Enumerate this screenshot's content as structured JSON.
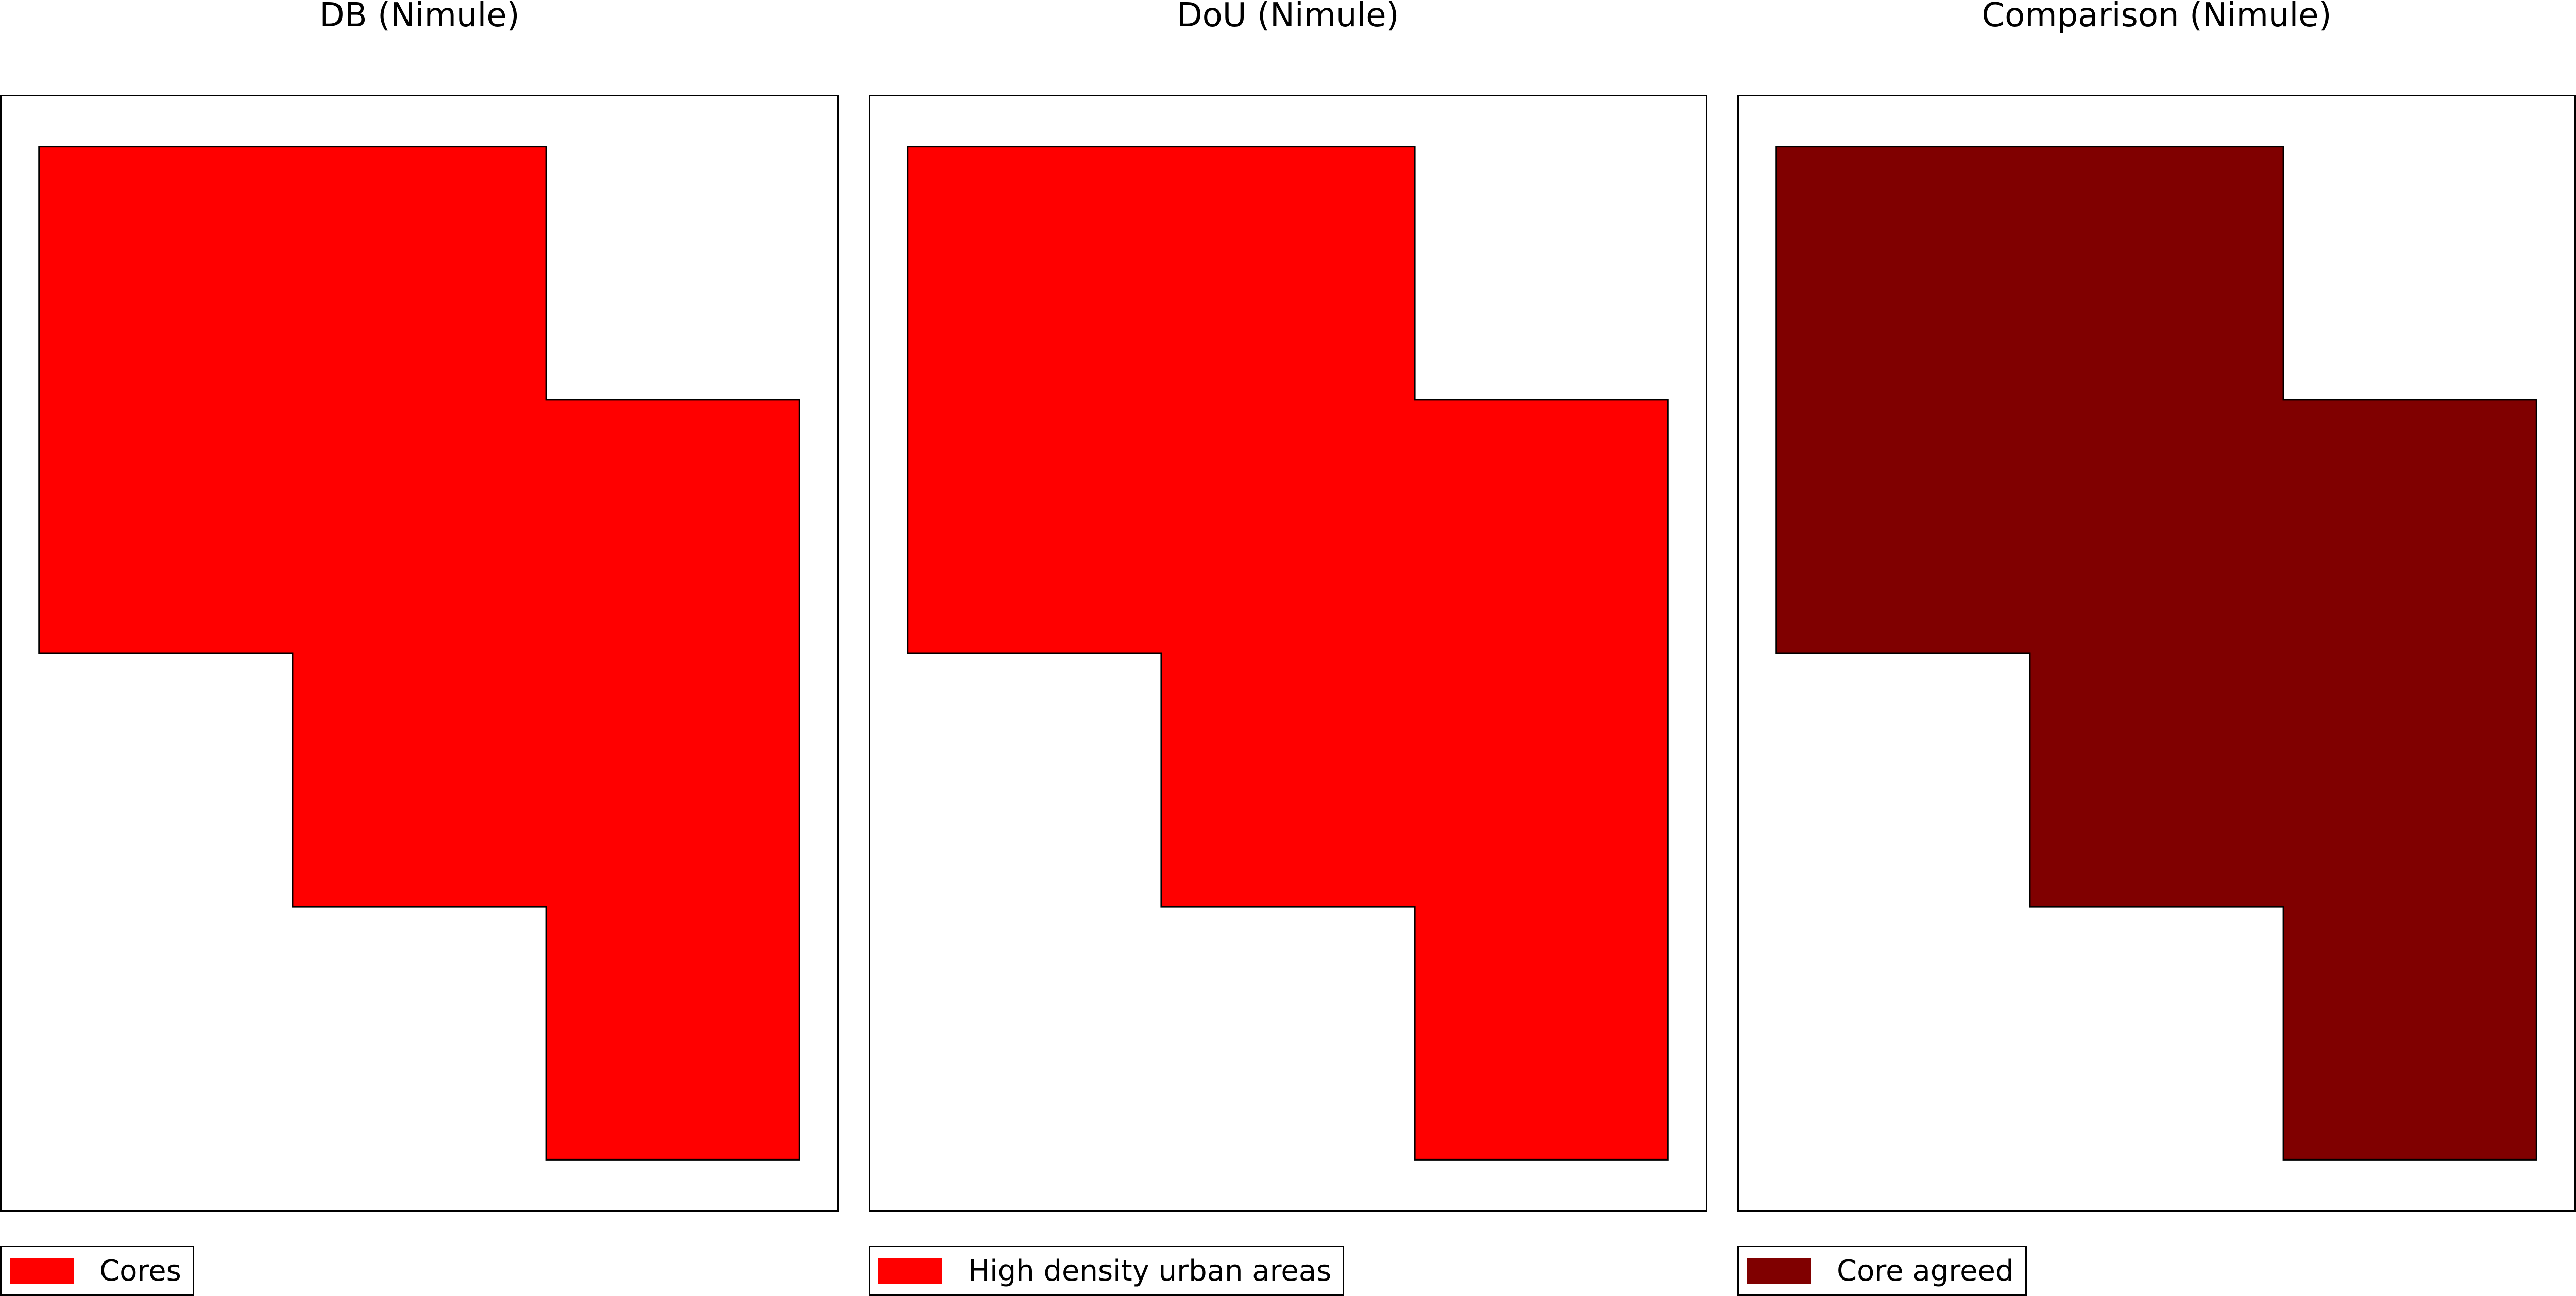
{
  "panels": [
    {
      "title": "DB (Nimule)",
      "fill_color": "#ff0000",
      "legend_label": "Cores"
    },
    {
      "title": "DoU (Nimule)",
      "fill_color": "#ff0000",
      "legend_label": "High density urban areas"
    },
    {
      "title": "Comparison (Nimule)",
      "fill_color": "#800000",
      "legend_label": "Core agreed"
    }
  ]
}
